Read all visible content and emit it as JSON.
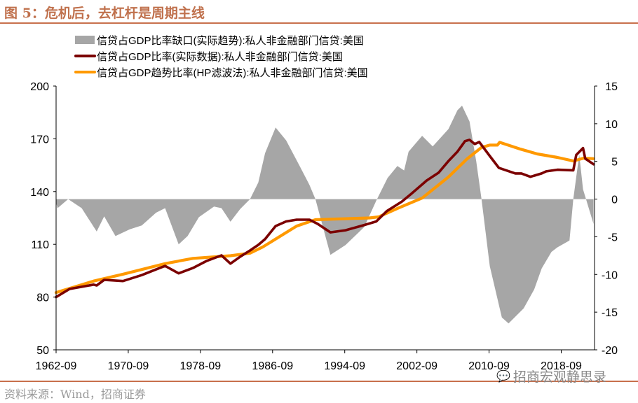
{
  "header": {
    "title": "图 5：危机后，去杠杆是周期主线"
  },
  "footer": {
    "source": "资料来源：Wind，招商证券",
    "watermark": "招商宏观静思录",
    "watermark_icon": "wechat-icon"
  },
  "colors": {
    "gap": "#a6a6a6",
    "actual": "#7b0000",
    "trend": "#ff9900",
    "accent": "#c8704c"
  },
  "chart_data": {
    "type": "line",
    "title": "",
    "legend_position": "top-center",
    "grid": false,
    "x_ticks": [
      "1962-09",
      "1970-09",
      "1978-09",
      "1986-09",
      "1994-09",
      "2002-09",
      "2010-09",
      "2018-09"
    ],
    "x_range": [
      "1962-09",
      "2022-06"
    ],
    "y_left": {
      "range": [
        50,
        200
      ],
      "ticks": [
        "50",
        "80",
        "110",
        "140",
        "170",
        "200"
      ]
    },
    "y_right": {
      "range": [
        -20,
        15
      ],
      "ticks": [
        "-20",
        "-15",
        "-10",
        "-5",
        "0",
        "5",
        "10",
        "15"
      ]
    },
    "series": [
      {
        "name": "信贷占GDP比率缺口(实际趋势):私人非金融部门信贷:美国",
        "type": "area",
        "axis": "right",
        "points": [
          [
            "1962-09",
            -0.5
          ],
          [
            "1962-11",
            -1.2
          ],
          [
            "1964-01",
            0
          ],
          [
            "1965-07",
            -1.2
          ],
          [
            "1967-03",
            -4.3
          ],
          [
            "1968-01",
            -2.3
          ],
          [
            "1969-04",
            -4.9
          ],
          [
            "1970-11",
            -4
          ],
          [
            "1972-03",
            -3.5
          ],
          [
            "1973-10",
            -1.8
          ],
          [
            "1974-10",
            -1.2
          ],
          [
            "1976-04",
            -6
          ],
          [
            "1977-04",
            -4.9
          ],
          [
            "1978-07",
            -2.4
          ],
          [
            "1980-03",
            -1
          ],
          [
            "1981-01",
            -1.2
          ],
          [
            "1982-01",
            -3
          ],
          [
            "1983-02",
            -1.3
          ],
          [
            "1984-03",
            0
          ],
          [
            "1985-02",
            2.2
          ],
          [
            "1985-11",
            6.1
          ],
          [
            "1987-01",
            9.5
          ],
          [
            "1988-03",
            7.8
          ],
          [
            "1989-09",
            4.4
          ],
          [
            "1990-10",
            1.9
          ],
          [
            "1991-06",
            0
          ],
          [
            "1993-02",
            -7.4
          ],
          [
            "1994-10",
            -6.1
          ],
          [
            "1996-11",
            -3.7
          ],
          [
            "1998-03",
            -0.2
          ],
          [
            "1999-06",
            2.8
          ],
          [
            "2000-07",
            4.4
          ],
          [
            "2001-04",
            3.8
          ],
          [
            "2001-10",
            6.3
          ],
          [
            "2003-04",
            8.4
          ],
          [
            "2004-06",
            7
          ],
          [
            "2006-03",
            9.3
          ],
          [
            "2007-03",
            11.8
          ],
          [
            "2007-09",
            12.4
          ],
          [
            "2008-07",
            10.3
          ],
          [
            "2009-04",
            5
          ],
          [
            "2009-11",
            0
          ],
          [
            "2010-10",
            -8.9
          ],
          [
            "2012-02",
            -15.7
          ],
          [
            "2012-11",
            -16.5
          ],
          [
            "2014-07",
            -14.5
          ],
          [
            "2015-09",
            -12
          ],
          [
            "2016-07",
            -9.2
          ],
          [
            "2017-08",
            -7
          ],
          [
            "2018-04",
            -6.4
          ],
          [
            "2019-08",
            -5.5
          ],
          [
            "2020-01",
            0
          ],
          [
            "2020-09",
            5.9
          ],
          [
            "2021-02",
            1.3
          ],
          [
            "2022-04",
            -3.3
          ]
        ]
      },
      {
        "name": "信贷占GDP比率(实际数据):私人非金融部门信贷:美国",
        "type": "line",
        "axis": "left",
        "points": [
          [
            "1962-09",
            80
          ],
          [
            "1964-03",
            84.6
          ],
          [
            "1966-11",
            87.1
          ],
          [
            "1967-03",
            86.6
          ],
          [
            "1968-01",
            89.8
          ],
          [
            "1970-02",
            89.1
          ],
          [
            "1972-03",
            92.5
          ],
          [
            "1973-10",
            95.7
          ],
          [
            "1974-10",
            97.7
          ],
          [
            "1976-04",
            93.5
          ],
          [
            "1977-11",
            96.5
          ],
          [
            "1979-05",
            100.5
          ],
          [
            "1981-01",
            103.7
          ],
          [
            "1982-01",
            99
          ],
          [
            "1983-02",
            103
          ],
          [
            "1984-03",
            106.5
          ],
          [
            "1985-02",
            109.7
          ],
          [
            "1985-11",
            113
          ],
          [
            "1987-01",
            120.4
          ],
          [
            "1988-03",
            123
          ],
          [
            "1989-05",
            124
          ],
          [
            "1990-10",
            124
          ],
          [
            "1991-09",
            121.6
          ],
          [
            "1993-02",
            116.8
          ],
          [
            "1994-10",
            118
          ],
          [
            "1996-11",
            121
          ],
          [
            "1998-03",
            123
          ],
          [
            "1999-05",
            128.9
          ],
          [
            "2001-01",
            134.3
          ],
          [
            "2002-02",
            138.9
          ],
          [
            "2003-10",
            146.3
          ],
          [
            "2005-02",
            150.8
          ],
          [
            "2006-03",
            157.4
          ],
          [
            "2007-03",
            162.7
          ],
          [
            "2008-01",
            168.7
          ],
          [
            "2008-07",
            169.4
          ],
          [
            "2009-02",
            167
          ],
          [
            "2009-08",
            168.2
          ],
          [
            "2010-10",
            160.2
          ],
          [
            "2011-10",
            153.5
          ],
          [
            "2013-08",
            150.3
          ],
          [
            "2014-04",
            150.3
          ],
          [
            "2015-04",
            148.4
          ],
          [
            "2016-07",
            150.3
          ],
          [
            "2017-01",
            151.5
          ],
          [
            "2018-04",
            152.4
          ],
          [
            "2020-01",
            152.1
          ],
          [
            "2020-05",
            160.8
          ],
          [
            "2021-02",
            164.7
          ],
          [
            "2021-05",
            158.7
          ],
          [
            "2022-04",
            155.5
          ]
        ]
      },
      {
        "name": "信贷占GDP趋势比率(HP滤波法):私人非金融部门信贷:美国",
        "type": "line",
        "axis": "left",
        "points": [
          [
            "1962-09",
            82.6
          ],
          [
            "1966-11",
            89.1
          ],
          [
            "1970-02",
            93
          ],
          [
            "1974-10",
            99
          ],
          [
            "1977-11",
            102
          ],
          [
            "1982-01",
            103.5
          ],
          [
            "1984-03",
            105
          ],
          [
            "1985-08",
            108.5
          ],
          [
            "1987-01",
            113
          ],
          [
            "1989-05",
            120.4
          ],
          [
            "1991-06",
            124
          ],
          [
            "1997-06",
            125
          ],
          [
            "1998-06",
            125.6
          ],
          [
            "2000-07",
            130.4
          ],
          [
            "2003-04",
            136.3
          ],
          [
            "2006-03",
            148.3
          ],
          [
            "2008-04",
            158.7
          ],
          [
            "2009-11",
            165.1
          ],
          [
            "2010-10",
            166.4
          ],
          [
            "2011-08",
            166.4
          ],
          [
            "2011-11",
            168
          ],
          [
            "2014-03",
            164.1
          ],
          [
            "2016-01",
            161.4
          ],
          [
            "2018-04",
            159.4
          ],
          [
            "2020-01",
            157.4
          ],
          [
            "2021-03",
            159
          ],
          [
            "2022-04",
            158.7
          ]
        ]
      }
    ]
  }
}
